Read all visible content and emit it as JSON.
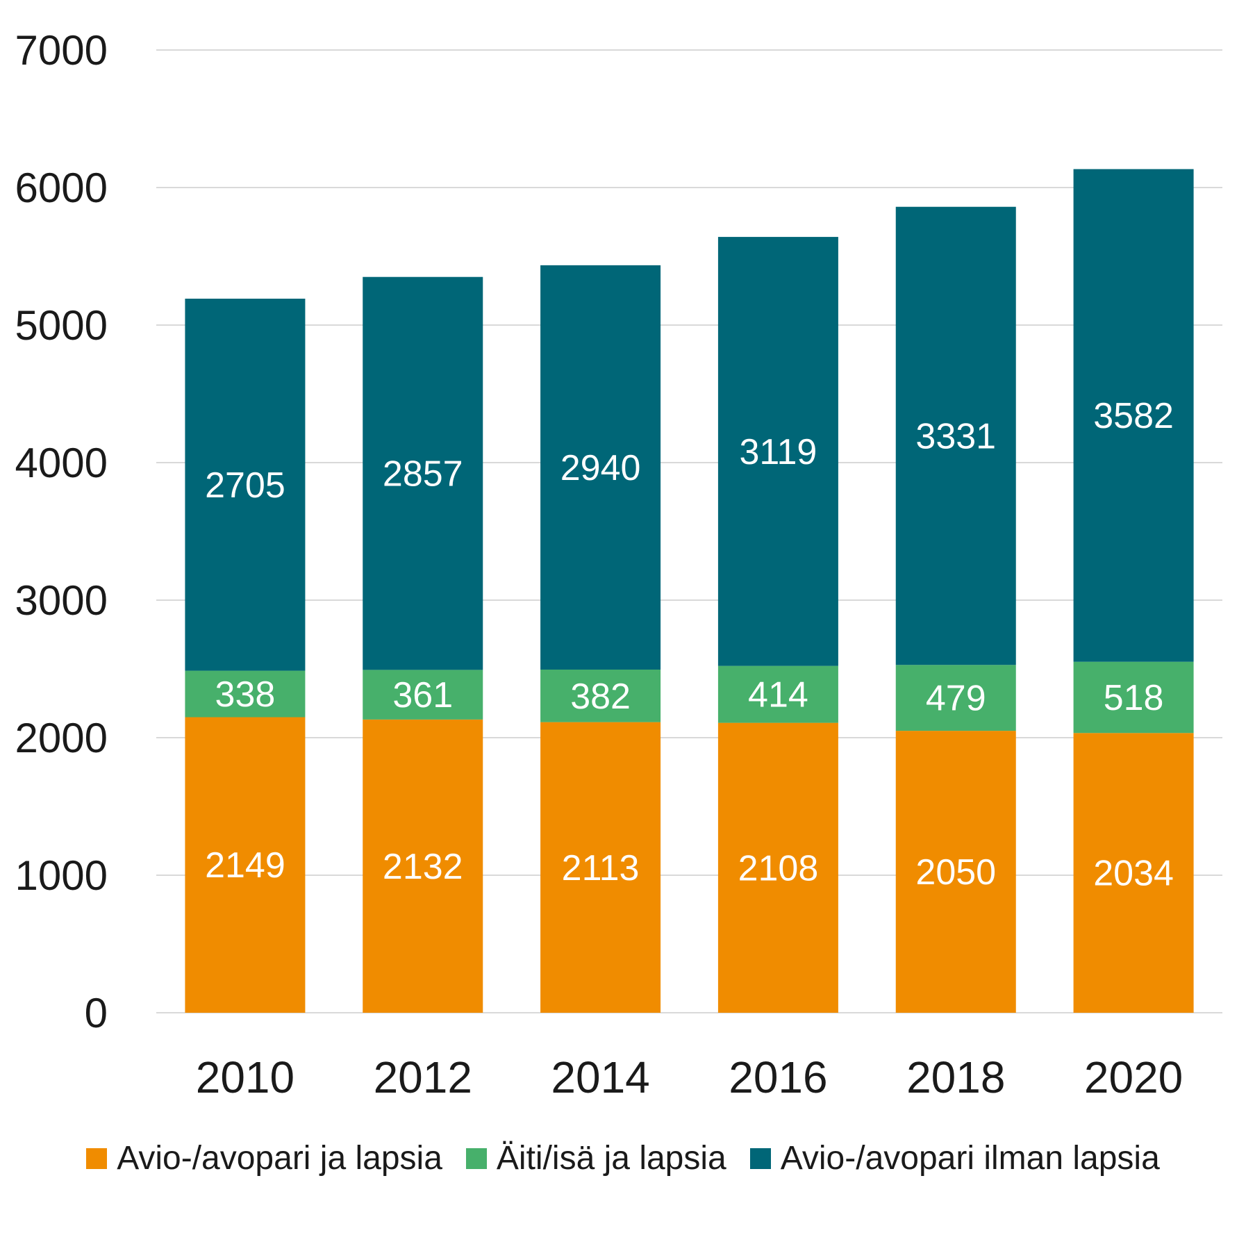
{
  "chart_data": {
    "type": "bar",
    "stacked": true,
    "title": "",
    "xlabel": "",
    "ylabel": "",
    "ylim": [
      0,
      7000
    ],
    "yticks": [
      0,
      1000,
      2000,
      3000,
      4000,
      5000,
      6000,
      7000
    ],
    "grid": true,
    "legend_position": "bottom",
    "categories": [
      "2010",
      "2012",
      "2014",
      "2016",
      "2018",
      "2020"
    ],
    "series": [
      {
        "name": "Avio-/avopari ja lapsia",
        "color": "#F08C00",
        "values": [
          2149,
          2132,
          2113,
          2108,
          2050,
          2034
        ]
      },
      {
        "name": "Äiti/isä ja lapsia",
        "color": "#47B06B",
        "values": [
          338,
          361,
          382,
          414,
          479,
          518
        ]
      },
      {
        "name": "Avio-/avopari ilman lapsia",
        "color": "#006677",
        "values": [
          2705,
          2857,
          2940,
          3119,
          3331,
          3582
        ]
      }
    ]
  }
}
